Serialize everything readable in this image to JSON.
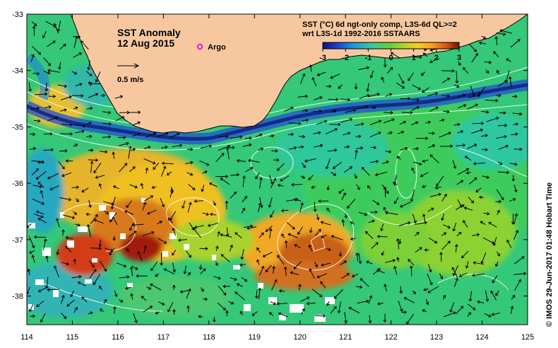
{
  "title": "SST Anomaly",
  "date": "12 Aug 2015",
  "argo_label": "Argo",
  "scale_label": "0.5 m/s",
  "legend": {
    "line1": "SST (°C) 6d ngt-only comp, L3S-6d QL>=2",
    "line2": "wrt L3S-1d 1992-2016 SSTAARS",
    "ticks": [
      "-3",
      "-2",
      "-1",
      "0",
      "1",
      "2",
      "3"
    ],
    "colors": [
      "#101080",
      "#1c3cc8",
      "#1e96dc",
      "#3cc8a0",
      "#6ecc3c",
      "#b4d22a",
      "#f0d020",
      "#f5a024",
      "#d85a14",
      "#a01c0c",
      "#781008"
    ]
  },
  "axes": {
    "x_ticks": [
      "114",
      "115",
      "116",
      "117",
      "118",
      "119",
      "120",
      "121",
      "122",
      "123",
      "124",
      "125"
    ],
    "y_ticks": [
      "-33",
      "-34",
      "-35",
      "-36",
      "-37",
      "-38"
    ]
  },
  "credit": "©  IMOS 29-Jun-2017 01:48 Hobart Time",
  "colors": {
    "land": "#f7c8a0",
    "ocean_base": "#34c878",
    "argo_marker": "#e020e0"
  }
}
